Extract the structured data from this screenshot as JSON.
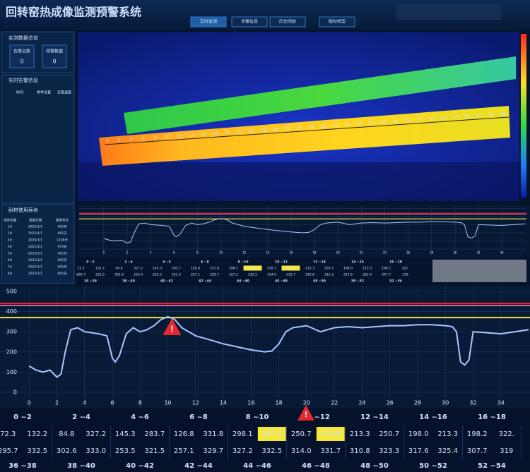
{
  "header": {
    "title": "回转窑热成像监测预警系统"
  },
  "nav": {
    "tabs": [
      "实时监测",
      "告警信息",
      "历史回放",
      "耐材档案"
    ],
    "active_tab": 0
  },
  "overview": {
    "title": "实测数据总览",
    "items": [
      {
        "label": "告警总数",
        "value": "0"
      },
      {
        "label": "预警数据",
        "value": "0"
      }
    ]
  },
  "alerts_panel": {
    "title": "实时告警信息",
    "columns": [
      "时间",
      "参考位置",
      "告警温度"
    ]
  },
  "lifetime": {
    "title": "耐材使用寿命",
    "columns": [
      "窑体位置",
      "更换日期",
      "使用寿命"
    ],
    "rows": [
      [
        "1#",
        "2023/1/1",
        "605天"
      ],
      [
        "2#",
        "2023/1/1",
        "605天"
      ],
      [
        "3#",
        "2020/1/1",
        "1336天"
      ],
      [
        "4#",
        "2021/1/1",
        "970天"
      ],
      [
        "5#",
        "2023/1/1",
        "605天"
      ],
      [
        "6#",
        "2022/1/1",
        "605天"
      ],
      [
        "7#",
        "2022/1/1",
        "605天"
      ],
      [
        "8#",
        "2023/1/1",
        "605天"
      ]
    ]
  },
  "thermal_image": {
    "scale_labels": [
      0,
      2,
      4,
      6,
      8,
      10,
      12,
      14,
      16,
      18,
      20,
      22,
      24,
      26,
      28,
      30,
      32,
      34,
      36,
      38,
      40,
      42,
      44,
      46,
      48,
      50,
      52,
      54,
      56,
      58,
      60,
      62,
      64,
      66
    ]
  },
  "chart_data": {
    "type": "line",
    "x": [
      0,
      0.5,
      1,
      1.5,
      2,
      2.3,
      2.6,
      3,
      3.5,
      4,
      5,
      5.6,
      6,
      6.2,
      6.5,
      7,
      7.5,
      8,
      8.5,
      9,
      9.5,
      10,
      10.5,
      11,
      12,
      13,
      14,
      15,
      16,
      17,
      17.5,
      18,
      18.5,
      19,
      20,
      21,
      21.5,
      22,
      23,
      24,
      25,
      26,
      27,
      28,
      29,
      30,
      30.5,
      30.8,
      31.1,
      31.4,
      31.7,
      32,
      33,
      34,
      35,
      36
    ],
    "series": [
      {
        "color": "#a9c6ff",
        "values": [
          130,
          110,
          100,
          110,
          75,
          90,
          200,
          310,
          320,
          300,
          290,
          280,
          170,
          150,
          180,
          290,
          320,
          300,
          310,
          330,
          360,
          375,
          360,
          320,
          280,
          260,
          240,
          225,
          210,
          200,
          205,
          240,
          300,
          320,
          330,
          300,
          310,
          320,
          325,
          320,
          325,
          330,
          330,
          335,
          335,
          330,
          325,
          300,
          150,
          135,
          160,
          300,
          295,
          290,
          300,
          310
        ]
      }
    ],
    "reference_lines": [
      {
        "value": 440,
        "color": "#e3263a"
      },
      {
        "value": 430,
        "color": "#e85a8a"
      },
      {
        "value": 370,
        "color": "#f3e64a"
      }
    ],
    "annotations": [
      {
        "x": 10.3,
        "y": 318,
        "text": "!"
      }
    ],
    "xlim": [
      -2.1,
      36.1
    ],
    "ylim": [
      -77,
      528
    ],
    "xticks": [
      0,
      2,
      4,
      6,
      8,
      10,
      12,
      14,
      16,
      18,
      20,
      22,
      24,
      26,
      28,
      30,
      32,
      34
    ],
    "yticks": [
      0,
      100,
      200,
      300,
      400,
      500
    ],
    "grid": true
  },
  "table": {
    "headers": [
      "0 ~2",
      "2 ~4",
      "4 ~6",
      "6 ~8",
      "8 ~10",
      "10 ~12",
      "12 ~14",
      "14 ~16",
      "16 ~18"
    ],
    "rows": [
      [
        "72.3",
        "132.2",
        "84.8",
        "327.2",
        "145.3",
        "283.7",
        "126.8",
        "331.8",
        "298.1",
        "381.5",
        "250.7",
        "379.8",
        "213.3",
        "250.7",
        "198.0",
        "213.3",
        "198.2",
        "322."
      ],
      [
        "295.7",
        "332.5",
        "302.6",
        "333.0",
        "253.5",
        "321.5",
        "257.1",
        "329.7",
        "327.2",
        "332.5",
        "314.0",
        "331.7",
        "310.8",
        "323.3",
        "317.6",
        "325.4",
        "307.7",
        "319"
      ]
    ],
    "footers": [
      "36 ~38",
      "38 ~40",
      "40 ~42",
      "42 ~44",
      "44 ~46",
      "46 ~48",
      "48 ~50",
      "50 ~52",
      "52 ~54"
    ],
    "highlighted_cells": [
      [
        0,
        9
      ],
      [
        0,
        11
      ]
    ],
    "alert": {
      "column": 5,
      "text": "!"
    }
  }
}
